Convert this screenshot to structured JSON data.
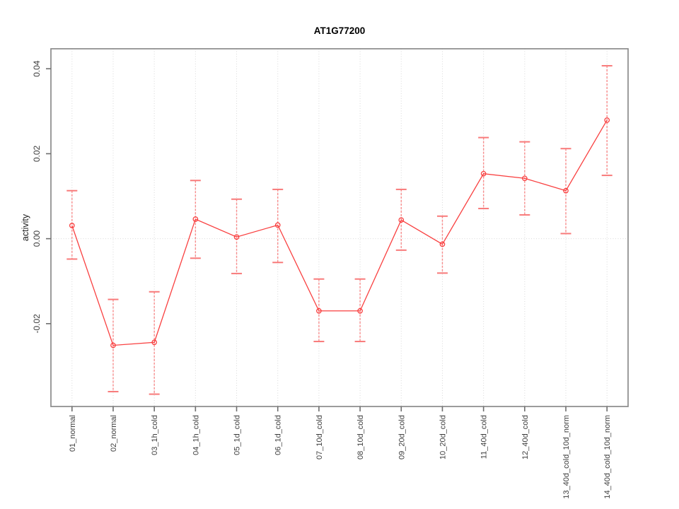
{
  "chart_data": {
    "type": "line",
    "title": "AT1G77200",
    "xlabel": "",
    "ylabel": "activity",
    "legend": "none",
    "grid": "dotted vertical gridline at each category; dotted horizontal gridline at y=0",
    "marker": "open-circle",
    "error_bars": true,
    "ylim": [
      -0.0395,
      0.0447
    ],
    "y_ticks": [
      -0.02,
      0,
      0.02,
      0.04
    ],
    "y_tick_labels": [
      "-0.02",
      "0.00",
      "0.02",
      "0.04"
    ],
    "categories": [
      "01_normal",
      "02_normal",
      "03_1h_cold",
      "04_1h_cold",
      "05_1d_cold",
      "06_1d_cold",
      "07_10d_cold",
      "08_10d_cold",
      "09_20d_cold",
      "10_20d_cold",
      "11_40d_cold",
      "12_40d_cold",
      "13_40d_cold_10d_norm",
      "14_40d_cold_10d_norm"
    ],
    "series": [
      {
        "name": "activity",
        "values": [
          0.0031,
          -0.0251,
          -0.0244,
          0.0046,
          0.0004,
          0.0032,
          -0.017,
          -0.017,
          0.0044,
          -0.0013,
          0.0153,
          0.0142,
          0.0113,
          0.0279
        ],
        "upper": [
          0.0113,
          -0.0143,
          -0.0125,
          0.0137,
          0.0093,
          0.0116,
          -0.0095,
          -0.0095,
          0.0116,
          0.0053,
          0.0238,
          0.0228,
          0.0212,
          0.0407
        ],
        "lower": [
          -0.0048,
          -0.036,
          -0.0366,
          -0.0046,
          -0.0082,
          -0.0056,
          -0.0242,
          -0.0242,
          -0.0027,
          -0.0081,
          0.0071,
          0.0056,
          0.0012,
          0.0149
        ]
      }
    ]
  },
  "style": {
    "line_color": "#f94040",
    "errorbar_color": "#f87a7a",
    "grid_color": "#d9d9d9",
    "box_color": "#8a8a8a",
    "tick_color": "#6e6e6e",
    "tick_label_color": "#3d3d3d",
    "title_color": "#000000",
    "background": "#ffffff"
  }
}
